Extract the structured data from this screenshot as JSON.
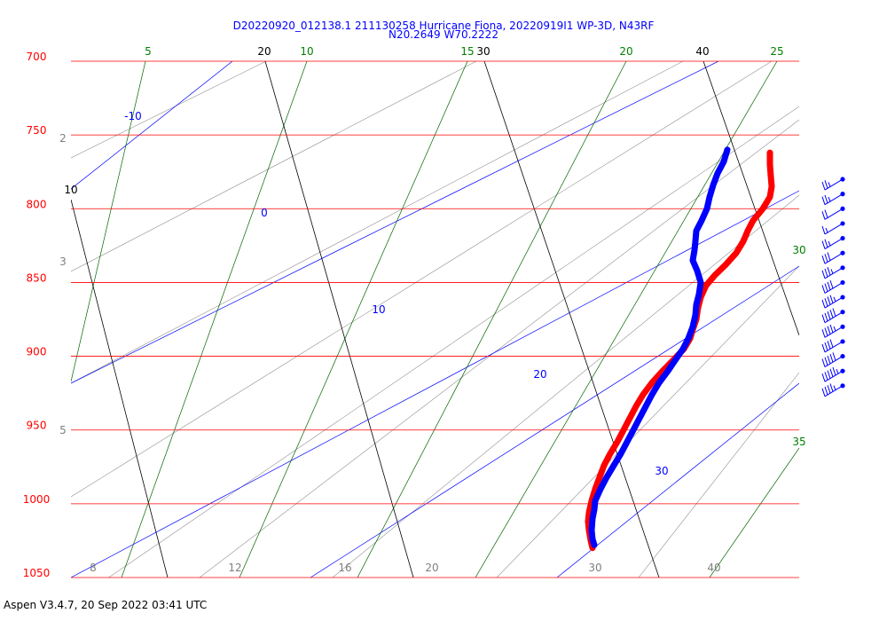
{
  "header": {
    "title_line1": "D20220920_012138.1 211130258 Hurricane Fiona, 20220919I1 WP-3D, N43RF",
    "title_line2": "N20.2649 W70.2222"
  },
  "footer": {
    "text": "Aspen V3.4.7, 20 Sep 2022  03:41 UTC"
  },
  "chart_data": {
    "type": "line",
    "title": "D20220920_012138.1 211130258 Hurricane Fiona, 20220919I1 WP-3D, N43RF",
    "subtitle": "N20.2649 W70.2222",
    "pressure_levels": [
      {
        "value": 700,
        "label": "700"
      },
      {
        "value": 750,
        "label": "750"
      },
      {
        "value": 800,
        "label": "800"
      },
      {
        "value": 850,
        "label": "850"
      },
      {
        "value": 900,
        "label": "900"
      },
      {
        "value": 950,
        "label": "950"
      },
      {
        "value": 1000,
        "label": "1000"
      },
      {
        "value": 1050,
        "label": "1050"
      }
    ],
    "isotherm_labels": [
      "20",
      "30",
      "40",
      "10"
    ],
    "dry_adiabat_labels": [
      "5",
      "10",
      "15",
      "20",
      "25",
      "30",
      "35"
    ],
    "mixing_ratio_labels": [
      "2",
      "3",
      "5",
      "8",
      "12",
      "16",
      "20",
      "30",
      "40"
    ],
    "moist_adiabat_labels": [
      "-10",
      "0",
      "10",
      "20",
      "30"
    ],
    "series": [
      {
        "name": "Temperature",
        "color": "#ff0000",
        "points": [
          [
            762,
            868
          ],
          [
            770,
            868
          ],
          [
            778,
            869
          ],
          [
            785,
            870
          ],
          [
            792,
            868
          ],
          [
            800,
            860
          ],
          [
            808,
            849
          ],
          [
            815,
            843
          ],
          [
            822,
            838
          ],
          [
            830,
            830
          ],
          [
            838,
            818
          ],
          [
            845,
            806
          ],
          [
            852,
            796
          ],
          [
            860,
            790
          ],
          [
            867,
            787
          ],
          [
            875,
            785
          ],
          [
            882,
            781
          ],
          [
            888,
            778
          ],
          [
            895,
            771
          ],
          [
            902,
            760
          ],
          [
            910,
            747
          ],
          [
            918,
            735
          ],
          [
            926,
            725
          ],
          [
            934,
            717
          ],
          [
            942,
            710
          ],
          [
            950,
            703
          ],
          [
            958,
            696
          ],
          [
            966,
            688
          ],
          [
            974,
            681
          ],
          [
            982,
            676
          ],
          [
            990,
            671
          ],
          [
            998,
            667
          ],
          [
            1006,
            664
          ],
          [
            1012,
            663
          ],
          [
            1018,
            664
          ],
          [
            1025,
            666
          ],
          [
            1030,
            668
          ]
        ]
      },
      {
        "name": "Dewpoint",
        "color": "#0000ff",
        "points": [
          [
            760,
            820
          ],
          [
            768,
            816
          ],
          [
            776,
            809
          ],
          [
            784,
            804
          ],
          [
            792,
            800
          ],
          [
            800,
            797
          ],
          [
            808,
            791
          ],
          [
            815,
            785
          ],
          [
            822,
            784
          ],
          [
            828,
            783
          ],
          [
            835,
            781
          ],
          [
            842,
            786
          ],
          [
            850,
            790
          ],
          [
            858,
            788
          ],
          [
            865,
            785
          ],
          [
            872,
            784
          ],
          [
            880,
            781
          ],
          [
            888,
            776
          ],
          [
            895,
            770
          ],
          [
            902,
            762
          ],
          [
            910,
            753
          ],
          [
            918,
            743
          ],
          [
            926,
            735
          ],
          [
            934,
            728
          ],
          [
            942,
            721
          ],
          [
            950,
            714
          ],
          [
            958,
            707
          ],
          [
            966,
            700
          ],
          [
            974,
            692
          ],
          [
            982,
            684
          ],
          [
            990,
            677
          ],
          [
            998,
            671
          ],
          [
            1004,
            670
          ],
          [
            1010,
            668
          ],
          [
            1018,
            667
          ],
          [
            1024,
            668
          ],
          [
            1028,
            670
          ]
        ]
      }
    ],
    "wind_barbs": [
      {
        "p": 780,
        "flags": 0,
        "long": 2,
        "short": 1
      },
      {
        "p": 790,
        "flags": 0,
        "long": 2,
        "short": 1
      },
      {
        "p": 800,
        "flags": 0,
        "long": 2,
        "short": 0
      },
      {
        "p": 810,
        "flags": 0,
        "long": 1,
        "short": 1
      },
      {
        "p": 820,
        "flags": 0,
        "long": 2,
        "short": 1
      },
      {
        "p": 830,
        "flags": 0,
        "long": 3,
        "short": 0
      },
      {
        "p": 840,
        "flags": 0,
        "long": 3,
        "short": 1
      },
      {
        "p": 850,
        "flags": 0,
        "long": 4,
        "short": 0
      },
      {
        "p": 860,
        "flags": 0,
        "long": 4,
        "short": 1
      },
      {
        "p": 870,
        "flags": 0,
        "long": 5,
        "short": 0
      },
      {
        "p": 880,
        "flags": 0,
        "long": 4,
        "short": 1
      },
      {
        "p": 890,
        "flags": 0,
        "long": 4,
        "short": 0
      },
      {
        "p": 900,
        "flags": 0,
        "long": 5,
        "short": 0
      },
      {
        "p": 910,
        "flags": 0,
        "long": 5,
        "short": 1
      },
      {
        "p": 920,
        "flags": 0,
        "long": 4,
        "short": 1
      }
    ],
    "grid": true
  }
}
